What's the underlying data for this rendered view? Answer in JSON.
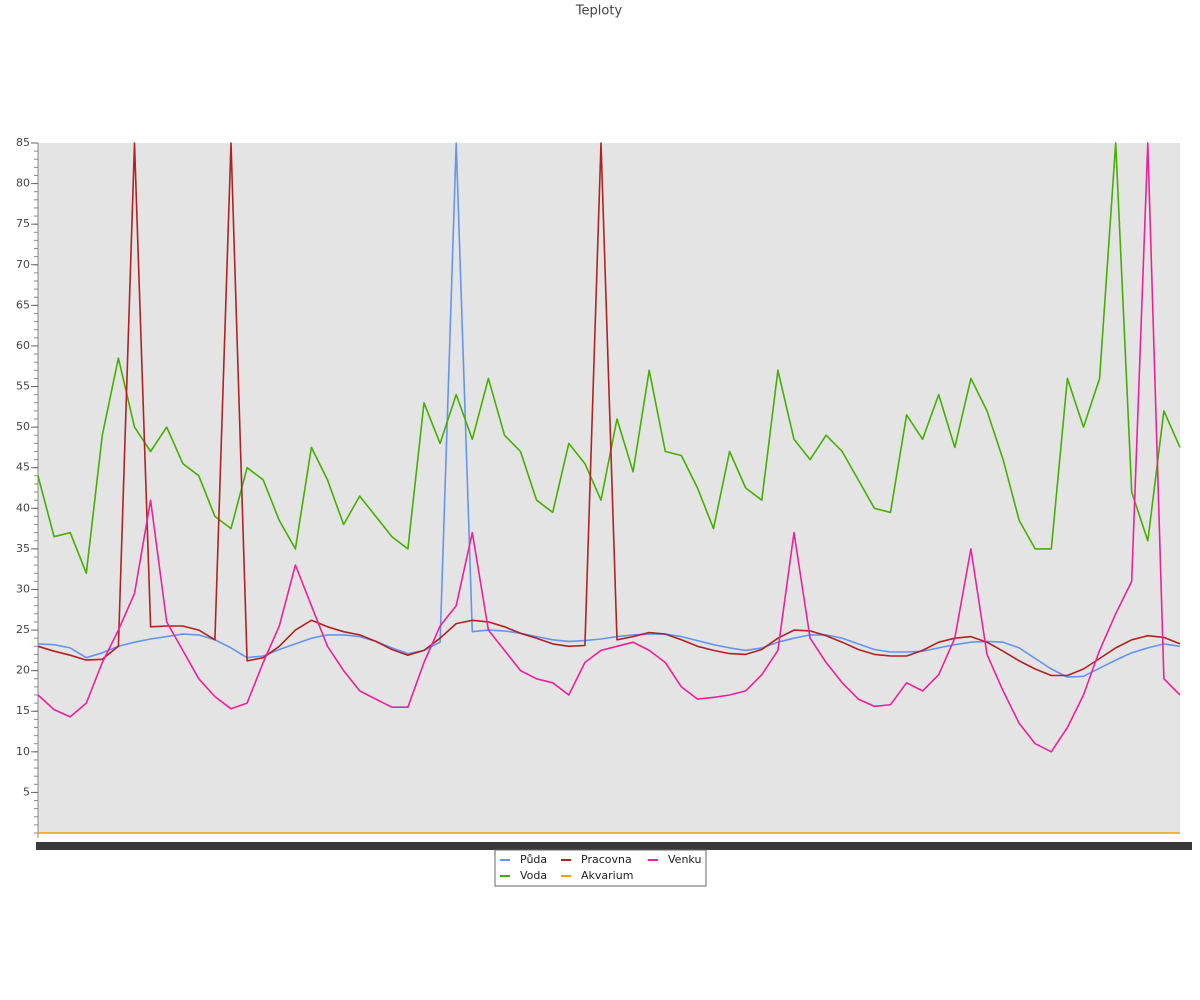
{
  "chart_data": {
    "type": "line",
    "title": "Teploty",
    "categories": [
      null,
      null,
      null,
      null,
      null,
      null,
      null,
      null,
      null,
      null,
      null,
      null,
      null,
      null,
      null,
      null,
      null,
      null,
      null,
      null,
      null,
      null,
      null,
      null,
      null,
      null,
      null,
      null,
      null,
      null,
      null,
      null,
      null,
      null,
      null,
      null,
      null,
      null,
      null,
      null,
      null,
      null,
      null,
      null,
      null,
      null,
      null,
      null,
      null,
      null,
      null,
      null,
      null,
      null,
      null,
      null,
      null,
      null,
      null,
      null,
      null,
      null,
      null,
      null,
      null,
      null,
      null,
      null,
      null,
      null,
      null,
      null
    ],
    "ylim": [
      0,
      85
    ],
    "yticks": [
      5,
      10,
      15,
      20,
      25,
      30,
      35,
      40,
      45,
      50,
      55,
      60,
      65,
      70,
      75,
      80,
      85
    ],
    "grid": false,
    "legend": "bottom",
    "series": [
      {
        "name": "Půda",
        "color": "#6495ed",
        "values": [
          23.3,
          23.2,
          22.8,
          21.6,
          22.2,
          23,
          23.5,
          23.9,
          24.2,
          24.5,
          24.4,
          23.8,
          22.8,
          21.6,
          21.8,
          22.6,
          23.3,
          24,
          24.4,
          24.4,
          24.2,
          23.6,
          22.8,
          22.1,
          22.5,
          23.5,
          85,
          24.8,
          25,
          24.9,
          24.6,
          24.2,
          23.8,
          23.6,
          23.7,
          23.9,
          24.2,
          24.4,
          24.5,
          24.5,
          24.2,
          23.7,
          23.2,
          22.8,
          22.5,
          22.8,
          23.5,
          24,
          24.4,
          24.4,
          24,
          23.3,
          22.6,
          22.3,
          22.3,
          22.4,
          22.8,
          23.2,
          23.5,
          23.6,
          23.5,
          22.8,
          21.5,
          20.2,
          19.2,
          19.3,
          20.3,
          21.3,
          22.2,
          22.8,
          23.3,
          23
        ]
      },
      {
        "name": "Voda",
        "color": "#44b000",
        "values": [
          44,
          36.5,
          37,
          32,
          49,
          58.5,
          50,
          47,
          50,
          45.5,
          44,
          39,
          37.5,
          45,
          43.5,
          38.5,
          35,
          47.5,
          43.5,
          38,
          41.5,
          39,
          36.5,
          35,
          53,
          48,
          54,
          48.5,
          56,
          49,
          47,
          41,
          39.5,
          48,
          45.5,
          41,
          51,
          44.5,
          57,
          47,
          46.5,
          42.5,
          37.5,
          47,
          42.5,
          41,
          57,
          48.5,
          46,
          49,
          47,
          43.5,
          40,
          39.5,
          51.5,
          48.5,
          54,
          47.5,
          56,
          52,
          46,
          38.5,
          35,
          35,
          56,
          50,
          56,
          85,
          42,
          36,
          52,
          47.5
        ]
      },
      {
        "name": "Pracovna",
        "color": "#b22222",
        "values": [
          23,
          22.4,
          21.9,
          21.3,
          21.4,
          23,
          85,
          25.4,
          25.5,
          25.5,
          25,
          23.8,
          85,
          21.2,
          21.6,
          23,
          25,
          26.2,
          25.4,
          24.8,
          24.4,
          23.6,
          22.6,
          21.9,
          22.5,
          24,
          25.8,
          26.2,
          26,
          25.4,
          24.6,
          24,
          23.3,
          23,
          23.1,
          85,
          23.8,
          24.2,
          24.7,
          24.5,
          23.8,
          23,
          22.5,
          22.1,
          22,
          22.6,
          24,
          25,
          24.9,
          24.3,
          23.5,
          22.6,
          22,
          21.8,
          21.8,
          22.5,
          23.5,
          24,
          24.2,
          23.5,
          22.4,
          21.2,
          20.2,
          19.4,
          19.4,
          20.2,
          21.5,
          22.8,
          23.8,
          24.3,
          24.1,
          23.3
        ]
      },
      {
        "name": "Akvarium",
        "color": "#f0a000",
        "values": [
          0,
          0,
          0,
          0,
          0,
          0,
          0,
          0,
          0,
          0,
          0,
          0,
          0,
          0,
          0,
          0,
          0,
          0,
          0,
          0,
          0,
          0,
          0,
          0,
          0,
          0,
          0,
          0,
          0,
          0,
          0,
          0,
          0,
          0,
          0,
          0,
          0,
          0,
          0,
          0,
          0,
          0,
          0,
          0,
          0,
          0,
          0,
          0,
          0,
          0,
          0,
          0,
          0,
          0,
          0,
          0,
          0,
          0,
          0,
          0,
          0,
          0,
          0,
          0,
          0,
          0,
          0,
          0,
          0,
          0,
          0,
          0
        ]
      },
      {
        "name": "Venku",
        "color": "#f0209a",
        "values": [
          17,
          15.2,
          14.3,
          16,
          21,
          25,
          29.5,
          41,
          26,
          22.5,
          19,
          16.8,
          15.3,
          16,
          21,
          25.5,
          33,
          28,
          23,
          20,
          17.5,
          16.5,
          15.5,
          15.5,
          21,
          25.5,
          28,
          37,
          25,
          22.5,
          20,
          19,
          18.5,
          17,
          21,
          22.5,
          23,
          23.5,
          22.5,
          21,
          18,
          16.5,
          16.7,
          17,
          17.5,
          19.5,
          22.5,
          37,
          24,
          21,
          18.5,
          16.5,
          15.6,
          15.8,
          18.5,
          17.5,
          19.5,
          24,
          35,
          22,
          17.5,
          13.5,
          11,
          10,
          13,
          17,
          22.5,
          27,
          31,
          85,
          19,
          17
        ]
      }
    ]
  }
}
